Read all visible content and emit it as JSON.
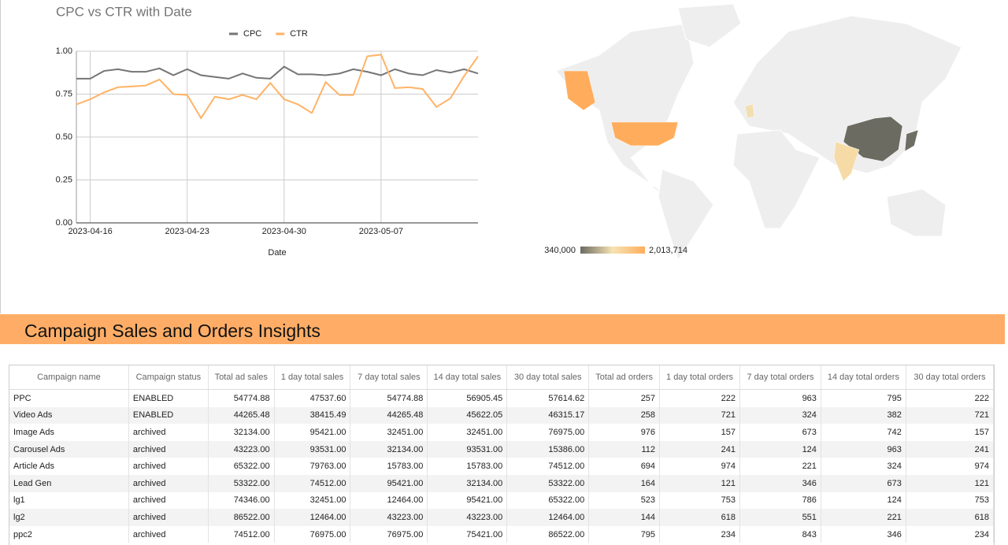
{
  "chart_data": [
    {
      "type": "line",
      "title": "CPC vs CTR with Date",
      "x_label": "Date",
      "x": [
        "2023-04-15",
        "2023-04-16",
        "2023-04-17",
        "2023-04-18",
        "2023-04-19",
        "2023-04-20",
        "2023-04-21",
        "2023-04-22",
        "2023-04-23",
        "2023-04-24",
        "2023-04-25",
        "2023-04-26",
        "2023-04-27",
        "2023-04-28",
        "2023-04-29",
        "2023-04-30",
        "2023-05-01",
        "2023-05-02",
        "2023-05-03",
        "2023-05-04",
        "2023-05-05",
        "2023-05-06",
        "2023-05-07",
        "2023-05-08",
        "2023-05-09",
        "2023-05-10",
        "2023-05-11",
        "2023-05-12",
        "2023-05-13",
        "2023-05-14"
      ],
      "xlim": [
        "2023-04-15",
        "2023-05-14"
      ],
      "xticks": [
        "2023-04-16",
        "2023-04-23",
        "2023-04-30",
        "2023-05-07"
      ],
      "ylim": [
        0,
        1
      ],
      "yticks": [
        {
          "value": 0,
          "label": "0.00"
        },
        {
          "value": 0.25,
          "label": "0.25"
        },
        {
          "value": 0.5,
          "label": "0.50"
        },
        {
          "value": 0.75,
          "label": "0.75"
        },
        {
          "value": 1,
          "label": "1.00"
        }
      ],
      "grid": true,
      "legend": "top",
      "series": [
        {
          "name": "CPC",
          "color": "#757575",
          "values": [
            0.84,
            0.84,
            0.885,
            0.895,
            0.88,
            0.88,
            0.9,
            0.86,
            0.895,
            0.86,
            0.85,
            0.84,
            0.87,
            0.845,
            0.84,
            0.91,
            0.865,
            0.865,
            0.86,
            0.87,
            0.895,
            0.88,
            0.86,
            0.895,
            0.87,
            0.86,
            0.89,
            0.875,
            0.895,
            0.87
          ]
        },
        {
          "name": "CTR",
          "color": "#ffb366",
          "values": [
            0.69,
            0.72,
            0.76,
            0.79,
            0.795,
            0.8,
            0.835,
            0.75,
            0.745,
            0.61,
            0.735,
            0.72,
            0.745,
            0.72,
            0.815,
            0.72,
            0.69,
            0.64,
            0.82,
            0.745,
            0.745,
            0.97,
            0.98,
            0.785,
            0.79,
            0.78,
            0.675,
            0.725,
            0.855,
            0.97
          ]
        }
      ]
    },
    {
      "type": "map",
      "values": [
        2013714,
        340000,
        360000,
        1300000,
        1150000
      ],
      "colorlim": [
        {
          "value": 340000,
          "label": "340,000"
        },
        {
          "value": 2013714,
          "label": "2,013,714"
        }
      ],
      "colors": [
        "#6b6b62",
        "#f6e3b4",
        "#ffad5c"
      ]
    }
  ],
  "header": {
    "title": "Campaign Sales and Orders Insights"
  },
  "table": {
    "columns": [
      "Campaign name",
      "Campaign status",
      "Total ad sales",
      "1 day total sales",
      "7 day total sales",
      "14 day total sales",
      "30 day total sales",
      "Total ad orders",
      "1 day total orders",
      "7 day total orders",
      "14 day total orders",
      "30 day total orders"
    ],
    "rows": [
      [
        "PPC",
        "ENABLED",
        "54774.88",
        "47537.60",
        "54774.88",
        "56905.45",
        "57614.62",
        "257",
        "222",
        "963",
        "795",
        "222"
      ],
      [
        "Video Ads",
        "ENABLED",
        "44265.48",
        "38415.49",
        "44265.48",
        "45622.05",
        "46315.17",
        "258",
        "721",
        "324",
        "382",
        "721"
      ],
      [
        "Image Ads",
        "archived",
        "32134.00",
        "95421.00",
        "32451.00",
        "32451.00",
        "76975.00",
        "976",
        "157",
        "673",
        "742",
        "157"
      ],
      [
        "Carousel Ads",
        "archived",
        "43223.00",
        "93531.00",
        "32134.00",
        "93531.00",
        "15386.00",
        "112",
        "241",
        "124",
        "963",
        "241"
      ],
      [
        "Article Ads",
        "archived",
        "65322.00",
        "79763.00",
        "15783.00",
        "15783.00",
        "74512.00",
        "694",
        "974",
        "221",
        "324",
        "974"
      ],
      [
        "Lead Gen",
        "archived",
        "53322.00",
        "74512.00",
        "95421.00",
        "32134.00",
        "53322.00",
        "164",
        "121",
        "346",
        "673",
        "121"
      ],
      [
        "lg1",
        "archived",
        "74346.00",
        "32451.00",
        "12464.00",
        "95421.00",
        "65322.00",
        "523",
        "753",
        "786",
        "124",
        "753"
      ],
      [
        "lg2",
        "archived",
        "86522.00",
        "12464.00",
        "43223.00",
        "43223.00",
        "12464.00",
        "144",
        "618",
        "551",
        "221",
        "618"
      ],
      [
        "ppc2",
        "archived",
        "74512.00",
        "76975.00",
        "76975.00",
        "75421.00",
        "86522.00",
        "795",
        "234",
        "843",
        "346",
        "234"
      ]
    ]
  }
}
